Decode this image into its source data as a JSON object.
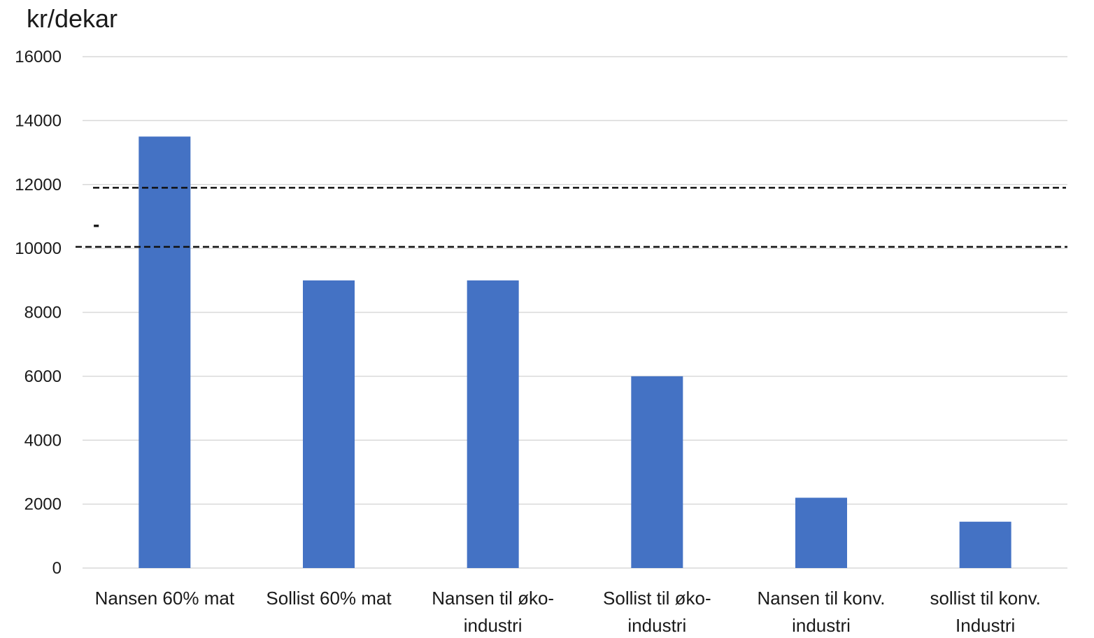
{
  "chart_data": {
    "type": "bar",
    "ylabel": "kr/dekar",
    "categories": [
      "Nansen 60% mat",
      "Sollist 60% mat",
      "Nansen til øko-industri",
      "Sollist til øko-industri",
      "Nansen til konv. industri",
      "sollist til konv. Industri"
    ],
    "category_lines": [
      [
        "Nansen 60% mat"
      ],
      [
        "Sollist 60% mat"
      ],
      [
        "Nansen til øko-",
        "industri"
      ],
      [
        "Sollist til øko-",
        "industri"
      ],
      [
        "Nansen til konv.",
        "industri"
      ],
      [
        "sollist til konv.",
        "Industri"
      ]
    ],
    "values": [
      13500,
      9000,
      9000,
      6000,
      2200,
      1450
    ],
    "ylim": [
      0,
      16000
    ],
    "yticks": [
      0,
      2000,
      4000,
      6000,
      8000,
      10000,
      12000,
      14000,
      16000
    ],
    "grid": true,
    "reference_lines": [
      11900,
      10050
    ],
    "annotation": "-",
    "bar_color": "#4472c4",
    "grid_color": "#d9d9d9",
    "text_color": "#1a1a1a"
  }
}
